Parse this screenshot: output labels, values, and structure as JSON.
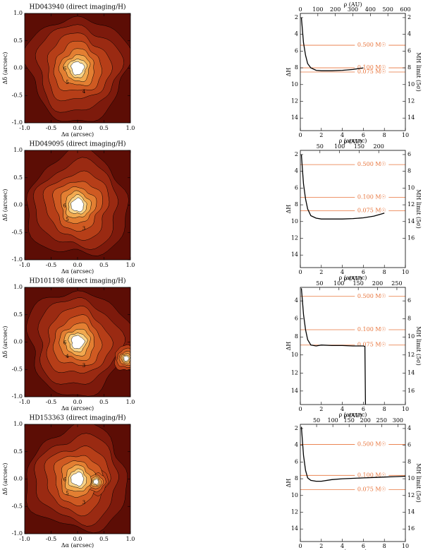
{
  "chart_data": [
    {
      "type": "contour",
      "title": "HD043940 (direct imaging/H)",
      "xlabel": "Δα (arcsec)",
      "ylabel": "Δδ (arcsec)",
      "xlim": [
        -1,
        1
      ],
      "ylim": [
        -1,
        1
      ],
      "xticks": [
        {
          "value": -1,
          "label": "-1.0"
        },
        {
          "value": -0.5,
          "label": "-0.5"
        },
        {
          "value": 0,
          "label": "0.0"
        },
        {
          "value": 0.5,
          "label": "0.5"
        },
        {
          "value": 1,
          "label": "1.0"
        }
      ],
      "yticks": [
        {
          "value": -1,
          "label": "-1.0"
        },
        {
          "value": -0.5,
          "label": "-0.5"
        },
        {
          "value": 0,
          "label": "0.0"
        },
        {
          "value": 0.5,
          "label": "0.5"
        },
        {
          "value": 1,
          "label": "1.0"
        }
      ],
      "contour_levels": [
        4,
        5,
        6
      ],
      "sources": [
        {
          "x": 0,
          "y": 0
        }
      ],
      "colormap": [
        "#5c0d05",
        "#7d1a0c",
        "#9a2a12",
        "#b63e18",
        "#cf5a22",
        "#e37f32",
        "#f2a94f",
        "#fbd58a",
        "#ffffff"
      ]
    },
    {
      "type": "line",
      "xlabel": "ρ (arcsec)",
      "x2label": "ρ (AU)",
      "ylabel": "ΔH",
      "y2label": "MH limit (5σ)",
      "xlim": [
        0,
        10
      ],
      "xticks": [
        0,
        2,
        4,
        6,
        8,
        10
      ],
      "x2lim": [
        0,
        600
      ],
      "x2ticks": [
        0,
        100,
        200,
        300,
        400,
        500,
        600
      ],
      "ylim": [
        1.5,
        15.5
      ],
      "yticks": [
        2,
        4,
        6,
        8,
        10,
        12,
        14
      ],
      "y2lim": [
        1.5,
        15.5
      ],
      "y2ticks": [
        2,
        4,
        6,
        8,
        10,
        12,
        14
      ],
      "y_inverted": true,
      "x": [
        0.1,
        0.2,
        0.3,
        0.5,
        0.7,
        1.0,
        1.5,
        2,
        3,
        4,
        5,
        6
      ],
      "values": [
        2,
        3.5,
        5,
        6.5,
        7.5,
        8.0,
        8.3,
        8.35,
        8.35,
        8.3,
        8.2,
        8.0
      ],
      "color": "#000000",
      "mass_limits": [
        {
          "label": "0.500 M☉",
          "value": 5.3
        },
        {
          "label": "0.100 M☉",
          "value": 8.0
        },
        {
          "label": "0.075 M☉",
          "value": 8.5
        }
      ],
      "mass_color": "#e8743b"
    },
    {
      "type": "contour",
      "title": "HD049095 (direct imaging/H)",
      "xlabel": "Δα (arcsec)",
      "ylabel": "Δδ (arcsec)",
      "xlim": [
        -1,
        1
      ],
      "ylim": [
        -1,
        1
      ],
      "xticks": [
        {
          "value": -1,
          "label": "-1.0"
        },
        {
          "value": -0.5,
          "label": "-0.5"
        },
        {
          "value": 0,
          "label": "0.0"
        },
        {
          "value": 0.5,
          "label": "0.5"
        },
        {
          "value": 1,
          "label": "1.0"
        }
      ],
      "yticks": [
        {
          "value": -1,
          "label": "-1.0"
        },
        {
          "value": -0.5,
          "label": "-0.5"
        },
        {
          "value": 0,
          "label": "0.0"
        },
        {
          "value": 0.5,
          "label": "0.5"
        },
        {
          "value": 1,
          "label": "1.0"
        }
      ],
      "contour_levels": [
        3,
        5,
        6
      ],
      "sources": [
        {
          "x": 0,
          "y": 0
        }
      ],
      "colormap": [
        "#5c0d05",
        "#7d1a0c",
        "#9a2a12",
        "#b63e18",
        "#cf5a22",
        "#e37f32",
        "#f2a94f",
        "#fbd58a",
        "#ffffff"
      ]
    },
    {
      "type": "line",
      "xlabel": "ρ (arcsec)",
      "x2label": "ρ (AU)",
      "ylabel": "ΔH",
      "y2label": "MH limit (5σ)",
      "xlim": [
        0,
        10
      ],
      "xticks": [
        0,
        2,
        4,
        6,
        8,
        10
      ],
      "x2lim": [
        0,
        268
      ],
      "x2ticks": [
        50,
        100,
        150,
        200
      ],
      "ylim": [
        1.5,
        15.5
      ],
      "yticks": [
        2,
        4,
        6,
        8,
        10,
        12,
        14
      ],
      "y2lim": [
        5.5,
        19.5
      ],
      "y2ticks": [
        6,
        8,
        10,
        12,
        14,
        16
      ],
      "y_inverted": true,
      "x": [
        0.1,
        0.2,
        0.3,
        0.5,
        0.7,
        1.0,
        1.5,
        2,
        3,
        4,
        5,
        6,
        7,
        8
      ],
      "values": [
        2,
        3.8,
        5.5,
        7.3,
        8.5,
        9.3,
        9.6,
        9.7,
        9.7,
        9.7,
        9.65,
        9.55,
        9.35,
        9.0
      ],
      "color": "#000000",
      "mass_limits": [
        {
          "label": "0.500 M☉",
          "value": 3.2
        },
        {
          "label": "0.100 M☉",
          "value": 7.1
        },
        {
          "label": "0.075 M☉",
          "value": 8.7
        }
      ],
      "mass_color": "#e8743b"
    },
    {
      "type": "contour",
      "title": "HD101198 (direct imaging/H)",
      "xlabel": "Δα (arcsec)",
      "ylabel": "Δδ (arcsec)",
      "xlim": [
        -1,
        1
      ],
      "ylim": [
        -1,
        1
      ],
      "xticks": [
        {
          "value": -1,
          "label": "-1.0"
        },
        {
          "value": -0.5,
          "label": "-0.5"
        },
        {
          "value": 0,
          "label": "0.0"
        },
        {
          "value": 0.5,
          "label": "0.5"
        },
        {
          "value": 1,
          "label": "1.0"
        }
      ],
      "yticks": [
        {
          "value": -1,
          "label": "-1.0"
        },
        {
          "value": -0.5,
          "label": "-0.5"
        },
        {
          "value": 0,
          "label": "0.0"
        },
        {
          "value": 0.5,
          "label": "0.5"
        },
        {
          "value": 1,
          "label": "1.0"
        }
      ],
      "contour_levels": [
        3,
        4,
        6
      ],
      "sources": [
        {
          "x": 0,
          "y": 0
        },
        {
          "x": 0.92,
          "y": -0.3
        }
      ],
      "colormap": [
        "#5c0d05",
        "#7d1a0c",
        "#9a2a12",
        "#b63e18",
        "#cf5a22",
        "#e37f32",
        "#f2a94f",
        "#fbd58a",
        "#ffffff"
      ]
    },
    {
      "type": "line",
      "xlabel": "ρ (arcsec)",
      "x2label": "ρ (AU)",
      "ylabel": "ΔH",
      "y2label": "MH limit (5σ)",
      "xlim": [
        0,
        10
      ],
      "xticks": [
        0,
        2,
        4,
        6,
        8,
        10
      ],
      "x2lim": [
        0,
        272
      ],
      "x2ticks": [
        50,
        100,
        150,
        200,
        250
      ],
      "ylim": [
        2.5,
        15.5
      ],
      "yticks": [
        4,
        6,
        8,
        10,
        12,
        14
      ],
      "y2lim": [
        4.5,
        17.5
      ],
      "y2ticks": [
        6,
        8,
        10,
        12,
        14,
        16
      ],
      "y_inverted": true,
      "x": [
        0.1,
        0.2,
        0.3,
        0.5,
        0.7,
        1.0,
        1.5,
        2,
        3,
        4,
        5,
        6,
        6.15,
        6.2
      ],
      "values": [
        2.6,
        4.0,
        5.5,
        7.2,
        8.3,
        8.9,
        9.0,
        8.9,
        8.95,
        8.95,
        9.0,
        9.0,
        9.05,
        15.5
      ],
      "color": "#000000",
      "mass_limits": [
        {
          "label": "0.500 M☉",
          "value": 3.5
        },
        {
          "label": "0.100 M☉",
          "value": 7.2
        },
        {
          "label": "0.075 M☉",
          "value": 8.9
        }
      ],
      "mass_color": "#e8743b"
    },
    {
      "type": "contour",
      "title": "HD153363 (direct imaging/H)",
      "xlabel": "Δα (arcsec)",
      "ylabel": "Δδ (arcsec)",
      "xlim": [
        -1,
        1
      ],
      "ylim": [
        -1,
        1
      ],
      "xticks": [
        {
          "value": -1,
          "label": "-1.0"
        },
        {
          "value": -0.5,
          "label": "-0.5"
        },
        {
          "value": 0,
          "label": "0.0"
        },
        {
          "value": 0.5,
          "label": "0.5"
        },
        {
          "value": 1,
          "label": "1.0"
        }
      ],
      "yticks": [
        {
          "value": -1,
          "label": "-1.0"
        },
        {
          "value": -0.5,
          "label": "-0.5"
        },
        {
          "value": 0,
          "label": "0.0"
        },
        {
          "value": 0.5,
          "label": "0.5"
        },
        {
          "value": 1,
          "label": "1.0"
        }
      ],
      "contour_levels": [
        3,
        5,
        6
      ],
      "sources": [
        {
          "x": 0,
          "y": 0
        },
        {
          "x": 0.35,
          "y": -0.05
        }
      ],
      "colormap": [
        "#5c0d05",
        "#7d1a0c",
        "#9a2a12",
        "#b63e18",
        "#cf5a22",
        "#e37f32",
        "#f2a94f",
        "#fbd58a",
        "#ffffff"
      ]
    },
    {
      "type": "line",
      "xlabel": "ρ (arcsec)",
      "x2label": "ρ (AU)",
      "ylabel": "ΔH",
      "y2label": "MH limit (5σ)",
      "xlim": [
        0,
        10
      ],
      "xticks": [
        0,
        2,
        4,
        6,
        8,
        10
      ],
      "x2lim": [
        0,
        323
      ],
      "x2ticks": [
        50,
        100,
        150,
        200,
        250,
        300
      ],
      "ylim": [
        1.5,
        15.5
      ],
      "yticks": [
        2,
        4,
        6,
        8,
        10,
        12,
        14
      ],
      "y2lim": [
        3.5,
        17.5
      ],
      "y2ticks": [
        4,
        6,
        8,
        10,
        12,
        14,
        16
      ],
      "y_inverted": true,
      "x": [
        0.1,
        0.2,
        0.3,
        0.5,
        0.7,
        1.0,
        1.5,
        2,
        3,
        4,
        5,
        6,
        7,
        8,
        9,
        10
      ],
      "values": [
        1.8,
        3.5,
        5.2,
        7.0,
        7.9,
        8.2,
        8.3,
        8.3,
        8.1,
        8.0,
        7.95,
        7.9,
        7.85,
        7.8,
        7.75,
        7.7
      ],
      "color": "#000000",
      "mass_limits": [
        {
          "label": "0.500 M☉",
          "value": 3.9
        },
        {
          "label": "0.100 M☉",
          "value": 7.6
        },
        {
          "label": "0.075 M☉",
          "value": 9.3
        }
      ],
      "mass_color": "#e8743b"
    }
  ]
}
